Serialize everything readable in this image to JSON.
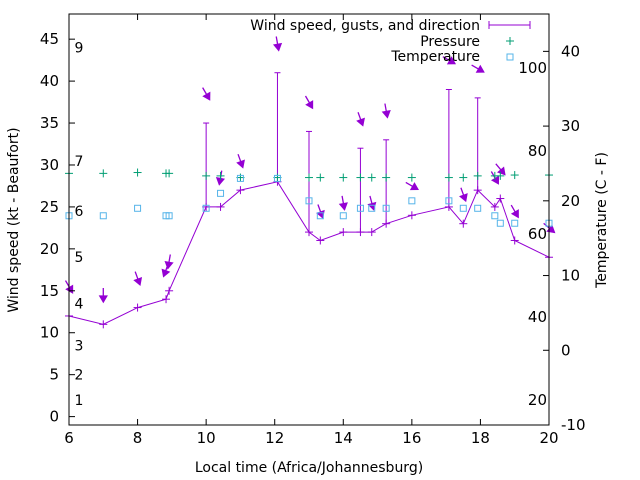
{
  "chart_data": {
    "type": "line",
    "xlabel": "Local time (Africa/Johannesburg)",
    "ylabel": "Wind speed (kt - Beaufort)",
    "y2label": "Temperature (C - F)",
    "xlim": [
      6,
      20
    ],
    "ylim": [
      -1,
      48
    ],
    "y2lim": [
      -10,
      45
    ],
    "x_ticks": [
      6,
      8,
      10,
      12,
      14,
      16,
      18,
      20
    ],
    "y_ticks": [
      0,
      5,
      10,
      15,
      20,
      25,
      30,
      35,
      40,
      45
    ],
    "y2_ticks": [
      -10,
      0,
      10,
      20,
      30,
      40
    ],
    "fahrenheit_labels": [
      20,
      40,
      60,
      80,
      100
    ],
    "beaufort_labels": [
      1,
      2,
      3,
      4,
      5,
      6,
      7,
      9
    ],
    "legend": {
      "wind": "Wind speed, gusts, and direction",
      "pressure": "Pressure",
      "temperature": "Temperature"
    },
    "colors": {
      "wind": "#9400d3",
      "pressure": "#009e73",
      "temperature": "#56b4e9"
    },
    "wind": [
      {
        "x": 6.0,
        "speed": 12,
        "gust": null,
        "dir": 330
      },
      {
        "x": 7.0,
        "speed": 11,
        "gust": null,
        "dir": 360
      },
      {
        "x": 8.0,
        "speed": 13,
        "gust": null,
        "dir": 340
      },
      {
        "x": 8.83,
        "speed": 14,
        "gust": null,
        "dir": 20
      },
      {
        "x": 8.92,
        "speed": 15,
        "gust": null,
        "dir": 10
      },
      {
        "x": 10.0,
        "speed": 25,
        "gust": 35,
        "dir": 330
      },
      {
        "x": 10.42,
        "speed": 25,
        "gust": null,
        "dir": 10
      },
      {
        "x": 11.0,
        "speed": 27,
        "gust": null,
        "dir": 340
      },
      {
        "x": 12.08,
        "speed": 28,
        "gust": 41,
        "dir": 350
      },
      {
        "x": 13.0,
        "speed": 22,
        "gust": 34,
        "dir": 330
      },
      {
        "x": 13.33,
        "speed": 21,
        "gust": null,
        "dir": 340
      },
      {
        "x": 14.0,
        "speed": 22,
        "gust": null,
        "dir": 350
      },
      {
        "x": 14.5,
        "speed": 22,
        "gust": 32,
        "dir": 340
      },
      {
        "x": 14.83,
        "speed": 22,
        "gust": null,
        "dir": 345
      },
      {
        "x": 15.25,
        "speed": 23,
        "gust": 33,
        "dir": 350
      },
      {
        "x": 16.0,
        "speed": 24,
        "gust": null,
        "dir": 300
      },
      {
        "x": 17.08,
        "speed": 25,
        "gust": 39,
        "dir": 300
      },
      {
        "x": 17.5,
        "speed": 23,
        "gust": null,
        "dir": 340
      },
      {
        "x": 17.92,
        "speed": 27,
        "gust": 38,
        "dir": 300
      },
      {
        "x": 18.42,
        "speed": 25,
        "gust": null,
        "dir": 330
      },
      {
        "x": 18.58,
        "speed": 26,
        "gust": null,
        "dir": 320
      },
      {
        "x": 19.0,
        "speed": 21,
        "gust": null,
        "dir": 330
      },
      {
        "x": 20.0,
        "speed": 19,
        "gust": null,
        "dir": 310
      }
    ],
    "pressure": [
      {
        "x": 6.0,
        "y": 29
      },
      {
        "x": 7.0,
        "y": 29
      },
      {
        "x": 8.0,
        "y": 29.1
      },
      {
        "x": 8.83,
        "y": 29
      },
      {
        "x": 8.92,
        "y": 29
      },
      {
        "x": 10.0,
        "y": 28.7
      },
      {
        "x": 10.42,
        "y": 28.7
      },
      {
        "x": 11.0,
        "y": 28.5
      },
      {
        "x": 12.08,
        "y": 28.5
      },
      {
        "x": 13.0,
        "y": 28.5
      },
      {
        "x": 13.33,
        "y": 28.5
      },
      {
        "x": 14.0,
        "y": 28.5
      },
      {
        "x": 14.5,
        "y": 28.5
      },
      {
        "x": 14.83,
        "y": 28.5
      },
      {
        "x": 15.25,
        "y": 28.5
      },
      {
        "x": 16.0,
        "y": 28.5
      },
      {
        "x": 17.08,
        "y": 28.5
      },
      {
        "x": 17.5,
        "y": 28.5
      },
      {
        "x": 17.92,
        "y": 28.7
      },
      {
        "x": 18.42,
        "y": 28.7
      },
      {
        "x": 18.58,
        "y": 28.7
      },
      {
        "x": 19.0,
        "y": 28.8
      },
      {
        "x": 20.0,
        "y": 28.8
      }
    ],
    "temperature": [
      {
        "x": 6.0,
        "y": 18
      },
      {
        "x": 7.0,
        "y": 18
      },
      {
        "x": 8.0,
        "y": 19
      },
      {
        "x": 8.83,
        "y": 18
      },
      {
        "x": 8.92,
        "y": 18
      },
      {
        "x": 10.0,
        "y": 19
      },
      {
        "x": 10.42,
        "y": 21
      },
      {
        "x": 11.0,
        "y": 23
      },
      {
        "x": 12.08,
        "y": 23
      },
      {
        "x": 13.0,
        "y": 20
      },
      {
        "x": 13.33,
        "y": 18
      },
      {
        "x": 14.0,
        "y": 18
      },
      {
        "x": 14.5,
        "y": 19
      },
      {
        "x": 14.83,
        "y": 19
      },
      {
        "x": 15.25,
        "y": 19
      },
      {
        "x": 16.0,
        "y": 20
      },
      {
        "x": 17.08,
        "y": 20
      },
      {
        "x": 17.5,
        "y": 19
      },
      {
        "x": 17.92,
        "y": 19
      },
      {
        "x": 18.42,
        "y": 18
      },
      {
        "x": 18.58,
        "y": 17
      },
      {
        "x": 19.0,
        "y": 17
      },
      {
        "x": 20.0,
        "y": 17
      }
    ],
    "grid": false,
    "legend_position": "top-right"
  }
}
